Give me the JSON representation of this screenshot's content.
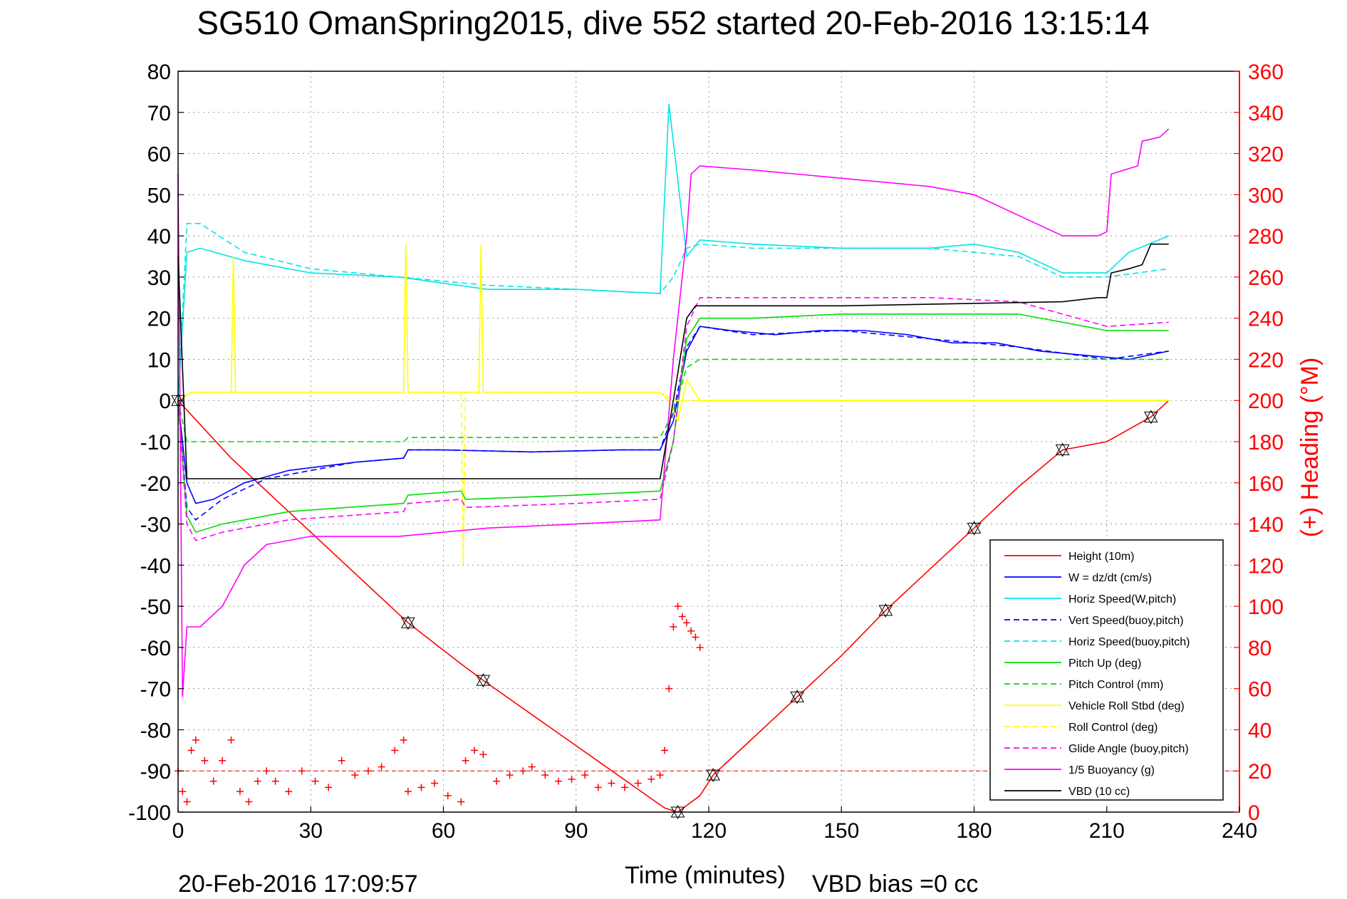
{
  "chart_data": {
    "type": "line",
    "title": "SG510 OmanSpring2015, dive 552 started 20-Feb-2016 13:15:14",
    "xlabel": "Time (minutes)",
    "ylabel_right": "(+) Heading (°M)",
    "xlim": [
      0,
      240
    ],
    "ylim_left": [
      -100,
      80
    ],
    "ylim_right": [
      0,
      360
    ],
    "x_ticks": [
      "0",
      "30",
      "60",
      "90",
      "120",
      "150",
      "180",
      "210",
      "240"
    ],
    "y_left_ticks": [
      "80",
      "70",
      "60",
      "50",
      "40",
      "30",
      "20",
      "10",
      "0",
      "-10",
      "-20",
      "-30",
      "-40",
      "-50",
      "-60",
      "-70",
      "-80",
      "-90",
      "-100"
    ],
    "y_right_ticks": [
      "360",
      "340",
      "320",
      "300",
      "280",
      "260",
      "240",
      "220",
      "200",
      "180",
      "160",
      "140",
      "120",
      "100",
      "80",
      "60",
      "40",
      "20",
      "0"
    ],
    "grid": true,
    "legend_position": "bottom-right",
    "footer_left": "20-Feb-2016 17:09:57",
    "footer_right": "VBD bias =0 cc",
    "series": [
      {
        "name": "Height (10m)",
        "color": "#ff0000",
        "style": "solid",
        "x": [
          0,
          12,
          52,
          64,
          69,
          110,
          113,
          118,
          121,
          130,
          140,
          150,
          160,
          170,
          180,
          190,
          200,
          210,
          220,
          224
        ],
        "y": [
          0,
          -14,
          -54,
          -64,
          -68,
          -99,
          -100,
          -96,
          -91,
          -82,
          -72,
          -62,
          -51,
          -41,
          -31,
          -21,
          -12,
          -10,
          -4,
          0
        ]
      },
      {
        "name": "W = dz/dt (cm/s)",
        "color": "#0000ff",
        "style": "solid",
        "x": [
          0,
          2,
          4,
          8,
          15,
          25,
          40,
          51,
          52,
          60,
          80,
          100,
          109,
          112,
          115,
          118,
          125,
          135,
          145,
          155,
          165,
          175,
          185,
          195,
          205,
          215,
          224
        ],
        "y": [
          0,
          -20,
          -25,
          -24,
          -20,
          -17,
          -15,
          -14,
          -12,
          -12,
          -12.5,
          -12,
          -12,
          -5,
          12,
          18,
          17,
          16,
          17,
          17,
          16,
          14,
          14,
          12,
          11,
          10,
          12
        ]
      },
      {
        "name": "Horiz Speed(W,pitch)",
        "color": "#00e5e5",
        "style": "solid",
        "x": [
          0,
          2,
          5,
          15,
          30,
          50,
          70,
          90,
          109,
          111,
          115,
          118,
          130,
          150,
          170,
          180,
          190,
          200,
          210,
          215,
          224
        ],
        "y": [
          0,
          36,
          37,
          34,
          31,
          30,
          27,
          27,
          26,
          72,
          35,
          39,
          38,
          37,
          37,
          38,
          36,
          31,
          31,
          36,
          40
        ]
      },
      {
        "name": "Vert Speed(buoy,pitch)",
        "color": "#0000ff",
        "style": "dashed",
        "x": [
          0,
          2,
          4,
          10,
          20,
          40,
          51,
          52,
          60,
          80,
          100,
          109,
          112,
          115,
          118,
          130,
          150,
          170,
          190,
          210,
          224
        ],
        "y": [
          0,
          -26,
          -29,
          -24,
          -19,
          -15,
          -14,
          -12,
          -12,
          -12.5,
          -12,
          -12,
          -3,
          13,
          18,
          16,
          17,
          15,
          13,
          10,
          12
        ]
      },
      {
        "name": "Horiz Speed(buoy,pitch)",
        "color": "#00e5e5",
        "style": "dashed",
        "x": [
          0,
          2,
          5,
          15,
          30,
          50,
          70,
          90,
          109,
          112,
          115,
          118,
          130,
          150,
          170,
          190,
          200,
          210,
          224
        ],
        "y": [
          0,
          43,
          43,
          36,
          32,
          30,
          28,
          27,
          26,
          30,
          37,
          38,
          37,
          37,
          37,
          35,
          30,
          30,
          32
        ]
      },
      {
        "name": "Pitch Up (deg)",
        "color": "#00dd00",
        "style": "solid",
        "x": [
          0,
          2,
          4,
          10,
          25,
          51,
          52,
          64,
          65,
          90,
          109,
          112,
          115,
          118,
          130,
          150,
          170,
          190,
          200,
          210,
          224
        ],
        "y": [
          0,
          -28,
          -32,
          -30,
          -27,
          -25,
          -23,
          -22,
          -24,
          -23,
          -22,
          -10,
          15,
          20,
          20,
          21,
          21,
          21,
          19,
          17,
          17
        ]
      },
      {
        "name": "Pitch Control (mm)",
        "color": "#00dd00",
        "style": "dashed",
        "x": [
          0,
          2,
          50,
          51,
          52,
          109,
          112,
          115,
          118,
          130,
          180,
          190,
          224
        ],
        "y": [
          0,
          -10,
          -10,
          -10,
          -9,
          -9,
          -3,
          8,
          10,
          10,
          10,
          10,
          10
        ]
      },
      {
        "name": "Vehicle Roll Stbd (deg)",
        "color": "#ffff00",
        "style": "solid",
        "x": [
          0,
          3,
          12,
          12.5,
          13,
          40,
          51,
          51.5,
          52,
          68,
          68.5,
          69,
          109,
          111,
          113,
          115,
          118,
          130,
          150,
          170,
          190,
          210,
          224
        ],
        "y": [
          0,
          2,
          2,
          35,
          2,
          2,
          2,
          38,
          2,
          2,
          38,
          2,
          2,
          0,
          -5,
          5,
          0,
          0,
          0,
          0,
          0,
          0,
          0
        ]
      },
      {
        "name": "Roll Control (deg)",
        "color": "#ffff00",
        "style": "dashed",
        "x": [
          0,
          3,
          64,
          64.5,
          65,
          109,
          112,
          118,
          130,
          150,
          170,
          190,
          210,
          224
        ],
        "y": [
          0,
          2,
          2,
          -40,
          2,
          2,
          0,
          0,
          0,
          0,
          0,
          0,
          0,
          0
        ]
      },
      {
        "name": "Glide Angle (buoy,pitch)",
        "color": "#ff00ff",
        "style": "dashed",
        "x": [
          0,
          2,
          4,
          10,
          25,
          51,
          52,
          64,
          65,
          90,
          109,
          112,
          115,
          118,
          130,
          150,
          170,
          190,
          200,
          210,
          224
        ],
        "y": [
          0,
          -30,
          -34,
          -32,
          -29,
          -27,
          -25,
          -24,
          -26,
          -25,
          -24,
          -10,
          18,
          25,
          25,
          25,
          25,
          24,
          21,
          18,
          19
        ]
      },
      {
        "name": "1/5 Buoyancy (g)",
        "color": "#ff00ff",
        "style": "solid",
        "x": [
          0,
          1,
          2,
          5,
          10,
          15,
          20,
          30,
          50,
          70,
          90,
          109,
          112,
          115,
          116,
          118,
          130,
          150,
          170,
          180,
          190,
          200,
          208,
          210,
          211,
          217,
          218,
          222,
          224
        ],
        "y": [
          55,
          -72,
          -55,
          -55,
          -50,
          -40,
          -35,
          -33,
          -33,
          -31,
          -30,
          -29,
          10,
          40,
          55,
          57,
          56,
          54,
          52,
          50,
          45,
          40,
          40,
          41,
          55,
          57,
          63,
          64,
          66
        ]
      },
      {
        "name": "VBD (10 cc)",
        "color": "#000000",
        "style": "solid",
        "x": [
          0,
          2,
          109,
          112,
          115,
          117,
          150,
          200,
          208,
          210,
          211,
          215,
          218,
          220,
          224
        ],
        "y": [
          35,
          -19,
          -19,
          0,
          20,
          23,
          23,
          24,
          25,
          25,
          31,
          32,
          33,
          38,
          38
        ]
      }
    ],
    "heading_series": {
      "name": "Heading",
      "color": "#ff0000",
      "marker": "+",
      "axis": "right",
      "x": [
        0,
        1,
        2,
        3,
        4,
        6,
        8,
        10,
        12,
        14,
        16,
        18,
        20,
        22,
        25,
        28,
        31,
        34,
        37,
        40,
        43,
        46,
        49,
        51,
        52,
        55,
        58,
        61,
        64,
        65,
        67,
        69,
        72,
        75,
        78,
        80,
        83,
        86,
        89,
        92,
        95,
        98,
        101,
        104,
        107,
        109,
        110,
        111,
        112,
        113,
        114,
        115,
        116,
        117,
        118
      ],
      "y": [
        20,
        10,
        5,
        30,
        35,
        25,
        15,
        25,
        35,
        10,
        5,
        15,
        20,
        15,
        10,
        20,
        15,
        12,
        25,
        18,
        20,
        22,
        30,
        35,
        10,
        12,
        14,
        8,
        5,
        25,
        30,
        28,
        15,
        18,
        20,
        22,
        18,
        15,
        16,
        18,
        12,
        14,
        12,
        14,
        16,
        18,
        30,
        60,
        90,
        100,
        95,
        92,
        88,
        85,
        80
      ]
    }
  }
}
